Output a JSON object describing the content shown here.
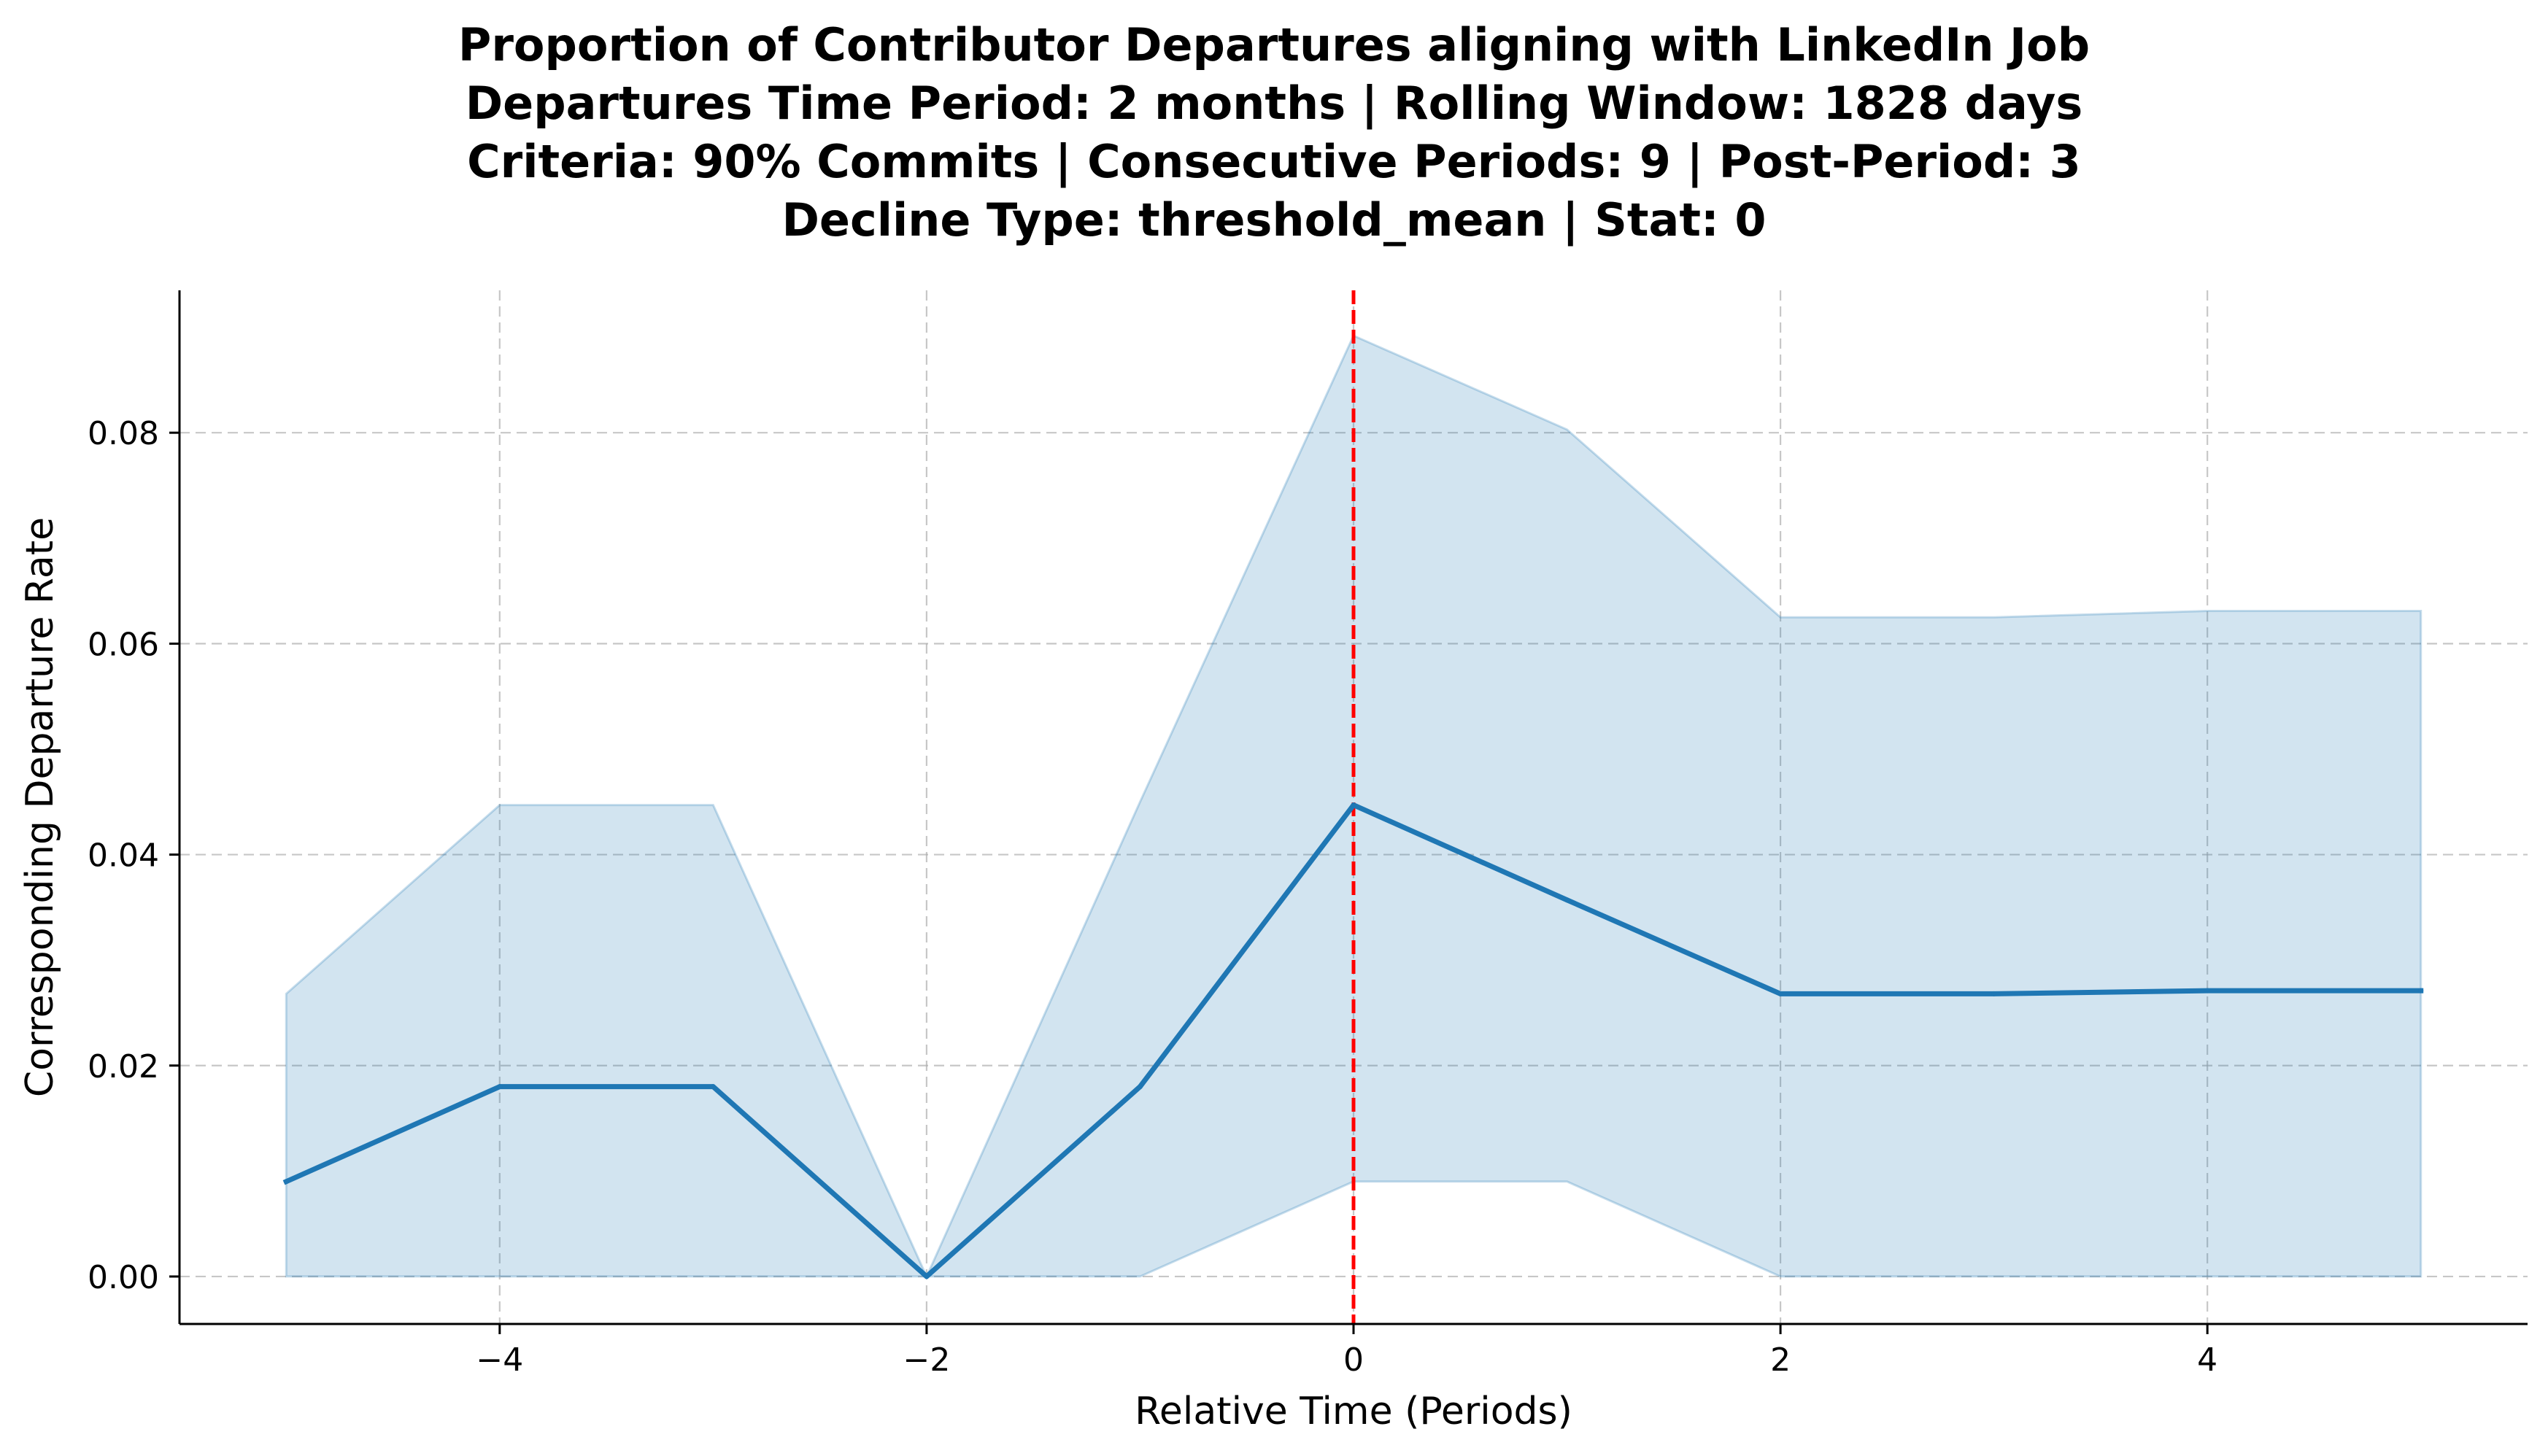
{
  "chart_data": {
    "type": "line",
    "title_lines": [
      "Proportion of Contributor Departures aligning with LinkedIn Job",
      "Departures Time Period: 2 months | Rolling Window: 1828 days",
      "Criteria: 90% Commits | Consecutive Periods: 9 | Post-Period: 3",
      "Decline Type: threshold_mean | Stat: 0"
    ],
    "xlabel": "Relative Time (Periods)",
    "ylabel": "Corresponding Departure Rate",
    "xlim": [
      -5.5,
      5.5
    ],
    "ylim": [
      -0.0045,
      0.0935
    ],
    "xticks": [
      -4,
      -2,
      0,
      2,
      4
    ],
    "xtick_labels": [
      "−4",
      "−2",
      "0",
      "2",
      "4"
    ],
    "yticks": [
      0.0,
      0.02,
      0.04,
      0.06,
      0.08
    ],
    "ytick_labels": [
      "0.00",
      "0.02",
      "0.04",
      "0.06",
      "0.08"
    ],
    "grid": true,
    "series": [
      {
        "x": [
          -5,
          -4,
          -3,
          -2,
          -1,
          0,
          1,
          2,
          3,
          4,
          5
        ],
        "values": [
          0.009,
          0.018,
          0.018,
          0.0,
          0.018,
          0.0447,
          0.0357,
          0.0268,
          0.0268,
          0.0271,
          0.0271
        ],
        "lower": [
          0.0,
          0.0,
          0.0,
          0.0,
          0.0,
          0.009,
          0.009,
          0.0,
          0.0,
          0.0,
          0.0
        ],
        "upper": [
          0.0268,
          0.0447,
          0.0447,
          0.0,
          0.045,
          0.0892,
          0.0803,
          0.0625,
          0.0625,
          0.0631,
          0.0631
        ]
      }
    ],
    "reference_line": {
      "x": 0,
      "style": "dashed"
    },
    "colors": {
      "line": "#1f77b4",
      "band": "#1f77b4",
      "reference": "#ff0000",
      "grid": "#b0b0b0"
    }
  }
}
